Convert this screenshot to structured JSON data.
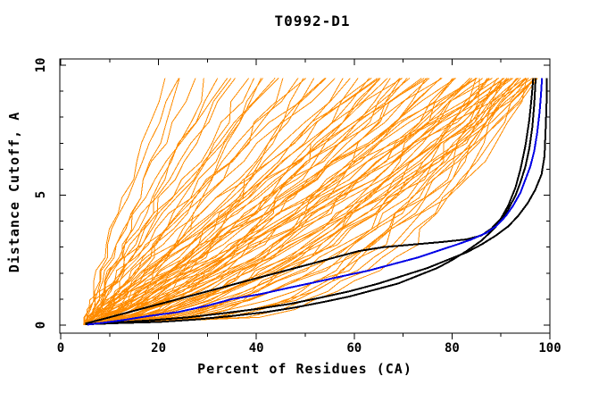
{
  "figure": {
    "background": "#ffffff",
    "title": "T0992-D1"
  },
  "chart_data": {
    "type": "line",
    "title": "T0992-D1",
    "xlabel": "Percent of Residues (CA)",
    "ylabel": "Distance Cutoff, A",
    "xlim": [
      0,
      100
    ],
    "ylim": [
      0,
      10
    ],
    "grid": false,
    "legend": "none",
    "x_major_tick_values": [
      0,
      20,
      40,
      60,
      80,
      100
    ],
    "x_major_tick_labels": [
      "0",
      "20",
      "40",
      "60",
      "80",
      "100"
    ],
    "x_minor_tick_values": [
      10,
      30,
      50,
      70,
      90
    ],
    "y_major_tick_values": [
      0,
      5,
      10
    ],
    "y_major_tick_labels": [
      "0",
      "5",
      "10"
    ],
    "y_minor_tick_values": [
      1,
      2,
      3,
      4,
      6,
      7,
      8,
      9
    ],
    "colors": {
      "ensemble": "#ff8c00",
      "reference": "#000000",
      "highlight": "#0000e6",
      "axis": "#000000"
    },
    "cutoff_knots": [
      0.02,
      0.3,
      0.6,
      0.95,
      1.3,
      1.7,
      2.1,
      2.6,
      3.1,
      3.7,
      4.3,
      4.9,
      5.6,
      6.3,
      7.0,
      7.8,
      8.6,
      9.5
    ],
    "ensemble_series": {
      "name": "predicted models (ensemble)",
      "color": "#ff8c00",
      "origin_percent": 5,
      "max_cutoff": 9.5,
      "jitter_seed": 1234,
      "curves_end_percent_and_shape": [
        [
          22,
          1.15
        ],
        [
          24,
          1.3
        ],
        [
          25,
          0.95
        ],
        [
          28,
          1.2
        ],
        [
          30,
          0.8
        ],
        [
          32,
          1.05
        ],
        [
          34,
          0.9
        ],
        [
          35,
          1.35
        ],
        [
          36,
          1.25
        ],
        [
          38,
          0.7
        ],
        [
          40,
          1.0
        ],
        [
          40,
          0.6
        ],
        [
          42,
          0.85
        ],
        [
          44,
          1.15
        ],
        [
          45,
          1.25
        ],
        [
          46,
          0.75
        ],
        [
          48,
          0.95
        ],
        [
          50,
          1.1
        ],
        [
          50,
          0.55
        ],
        [
          52,
          0.65
        ],
        [
          54,
          0.9
        ],
        [
          55,
          1.3
        ],
        [
          56,
          1.2
        ],
        [
          58,
          0.8
        ],
        [
          60,
          1.0
        ],
        [
          60,
          0.5
        ],
        [
          62,
          0.7
        ],
        [
          63,
          0.9
        ],
        [
          64,
          1.1
        ],
        [
          65,
          0.6
        ],
        [
          65,
          1.2
        ],
        [
          66,
          0.85
        ],
        [
          67,
          1.05
        ],
        [
          68,
          0.75
        ],
        [
          69,
          0.95
        ],
        [
          70,
          0.65
        ],
        [
          70,
          0.45
        ],
        [
          71,
          0.88
        ],
        [
          72,
          1.08
        ],
        [
          73,
          0.72
        ],
        [
          74,
          0.92
        ],
        [
          75,
          0.6
        ],
        [
          75,
          1.15
        ],
        [
          76,
          0.82
        ],
        [
          77,
          1.0
        ],
        [
          78,
          0.68
        ],
        [
          79,
          0.88
        ],
        [
          80,
          0.55
        ],
        [
          80,
          0.4
        ],
        [
          81,
          0.78
        ],
        [
          82,
          0.95
        ],
        [
          83,
          0.62
        ],
        [
          84,
          0.82
        ],
        [
          85,
          0.5
        ],
        [
          85,
          1.05
        ],
        [
          85.5,
          0.72
        ],
        [
          86,
          0.9
        ],
        [
          86.5,
          0.58
        ],
        [
          87,
          0.76
        ],
        [
          87,
          0.3
        ],
        [
          87.5,
          0.46
        ],
        [
          88,
          0.68
        ],
        [
          88.5,
          0.85
        ],
        [
          89,
          0.54
        ],
        [
          89.5,
          0.72
        ],
        [
          90,
          0.42
        ],
        [
          90,
          0.95
        ],
        [
          90.5,
          0.62
        ],
        [
          91,
          0.8
        ],
        [
          91,
          0.32
        ],
        [
          91.5,
          0.5
        ],
        [
          92,
          0.66
        ],
        [
          92.5,
          0.4
        ],
        [
          93,
          0.58
        ],
        [
          93,
          0.85
        ],
        [
          93.5,
          0.74
        ],
        [
          94,
          0.46
        ],
        [
          94,
          0.3
        ],
        [
          94.3,
          0.6
        ],
        [
          94.6,
          0.36
        ],
        [
          95,
          0.52
        ],
        [
          95.3,
          0.66
        ],
        [
          95.6,
          0.42
        ],
        [
          96,
          0.55
        ],
        [
          96,
          0.28
        ],
        [
          96.3,
          0.34
        ],
        [
          96.6,
          0.48
        ],
        [
          96.9,
          0.6
        ],
        [
          97.2,
          0.4
        ]
      ]
    },
    "reference_series": [
      {
        "name": "reference model 1 (black)",
        "color": "#000000",
        "points_percent_cutoff": [
          [
            5,
            0.03
          ],
          [
            12,
            0.08
          ],
          [
            20,
            0.12
          ],
          [
            28,
            0.22
          ],
          [
            35,
            0.35
          ],
          [
            42,
            0.5
          ],
          [
            48,
            0.68
          ],
          [
            54,
            0.9
          ],
          [
            59,
            1.1
          ],
          [
            64,
            1.35
          ],
          [
            69,
            1.6
          ],
          [
            73,
            1.9
          ],
          [
            77,
            2.2
          ],
          [
            80,
            2.5
          ],
          [
            83,
            2.85
          ],
          [
            86,
            3.25
          ],
          [
            88,
            3.6
          ],
          [
            90,
            4.0
          ],
          [
            91.5,
            4.45
          ],
          [
            93,
            5.0
          ],
          [
            94,
            5.5
          ],
          [
            95,
            6.1
          ],
          [
            95.8,
            6.8
          ],
          [
            96.4,
            7.6
          ],
          [
            96.8,
            8.5
          ],
          [
            97.1,
            9.5
          ]
        ]
      },
      {
        "name": "reference model 2 (black)",
        "color": "#000000",
        "points_percent_cutoff": [
          [
            5,
            0.04
          ],
          [
            11,
            0.1
          ],
          [
            18,
            0.18
          ],
          [
            26,
            0.3
          ],
          [
            33,
            0.45
          ],
          [
            40,
            0.62
          ],
          [
            47,
            0.82
          ],
          [
            53,
            1.05
          ],
          [
            59,
            1.3
          ],
          [
            65,
            1.6
          ],
          [
            70,
            1.9
          ],
          [
            75,
            2.2
          ],
          [
            79,
            2.5
          ],
          [
            83,
            2.8
          ],
          [
            86,
            3.1
          ],
          [
            89,
            3.45
          ],
          [
            91.5,
            3.8
          ],
          [
            93.5,
            4.2
          ],
          [
            95.5,
            4.7
          ],
          [
            97,
            5.2
          ],
          [
            98.3,
            5.8
          ],
          [
            98.9,
            6.5
          ],
          [
            99.1,
            7.4
          ],
          [
            99.3,
            8.4
          ],
          [
            99.4,
            9.5
          ]
        ]
      },
      {
        "name": "reference model 3 (black)",
        "color": "#000000",
        "points_percent_cutoff": [
          [
            5,
            0.06
          ],
          [
            9,
            0.25
          ],
          [
            14,
            0.5
          ],
          [
            20,
            0.8
          ],
          [
            26,
            1.1
          ],
          [
            32,
            1.4
          ],
          [
            38,
            1.7
          ],
          [
            44,
            2.0
          ],
          [
            50,
            2.3
          ],
          [
            56,
            2.6
          ],
          [
            61,
            2.85
          ],
          [
            66,
            3.0
          ],
          [
            72,
            3.1
          ],
          [
            78,
            3.2
          ],
          [
            83,
            3.3
          ],
          [
            86,
            3.45
          ],
          [
            88,
            3.7
          ],
          [
            90,
            4.1
          ],
          [
            91.5,
            4.6
          ],
          [
            93,
            5.3
          ],
          [
            94,
            6.0
          ],
          [
            95,
            6.9
          ],
          [
            95.8,
            7.9
          ],
          [
            96.3,
            8.8
          ],
          [
            96.6,
            9.5
          ]
        ]
      }
    ],
    "highlight_series": {
      "name": "highlighted model (blue)",
      "color": "#0000e6",
      "points_percent_cutoff": [
        [
          5.5,
          0.02
        ],
        [
          9,
          0.1
        ],
        [
          13,
          0.2
        ],
        [
          18,
          0.35
        ],
        [
          24,
          0.5
        ],
        [
          30,
          0.75
        ],
        [
          35,
          1.0
        ],
        [
          41,
          1.2
        ],
        [
          47,
          1.45
        ],
        [
          52,
          1.65
        ],
        [
          58,
          1.9
        ],
        [
          63,
          2.1
        ],
        [
          68,
          2.35
        ],
        [
          73,
          2.6
        ],
        [
          77,
          2.85
        ],
        [
          81,
          3.1
        ],
        [
          84,
          3.3
        ],
        [
          87,
          3.55
        ],
        [
          89,
          3.8
        ],
        [
          91,
          4.2
        ],
        [
          92.5,
          4.6
        ],
        [
          94,
          5.1
        ],
        [
          95,
          5.6
        ],
        [
          96,
          6.1
        ],
        [
          96.8,
          6.7
        ],
        [
          97.4,
          7.4
        ],
        [
          97.9,
          8.2
        ],
        [
          98.2,
          8.9
        ],
        [
          98.4,
          9.5
        ]
      ]
    }
  }
}
